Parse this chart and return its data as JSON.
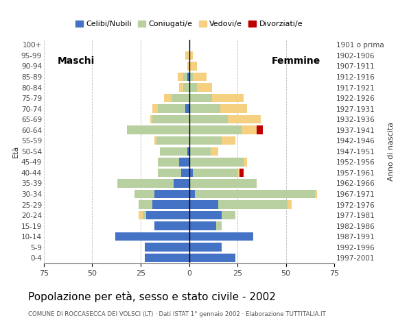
{
  "age_groups": [
    "0-4",
    "5-9",
    "10-14",
    "15-19",
    "20-24",
    "25-29",
    "30-34",
    "35-39",
    "40-44",
    "45-49",
    "50-54",
    "55-59",
    "60-64",
    "65-69",
    "70-74",
    "75-79",
    "80-84",
    "85-89",
    "90-94",
    "95-99",
    "100+"
  ],
  "birth_years": [
    "1997-2001",
    "1992-1996",
    "1987-1991",
    "1982-1986",
    "1977-1981",
    "1972-1976",
    "1967-1971",
    "1962-1966",
    "1957-1961",
    "1952-1956",
    "1947-1951",
    "1942-1946",
    "1937-1941",
    "1932-1936",
    "1927-1931",
    "1922-1926",
    "1917-1921",
    "1912-1916",
    "1907-1911",
    "1902-1906",
    "1901 o prima"
  ],
  "males": {
    "celibi": [
      23,
      23,
      38,
      18,
      22,
      19,
      18,
      8,
      4,
      5,
      1,
      0,
      0,
      0,
      2,
      0,
      0,
      1,
      0,
      0,
      0
    ],
    "coniugati": [
      0,
      0,
      0,
      0,
      2,
      7,
      10,
      29,
      12,
      11,
      14,
      17,
      32,
      19,
      14,
      9,
      3,
      2,
      0,
      0,
      0
    ],
    "vedovi": [
      0,
      0,
      0,
      0,
      2,
      0,
      0,
      0,
      0,
      0,
      0,
      1,
      0,
      1,
      3,
      4,
      2,
      3,
      1,
      2,
      0
    ],
    "divorziati": [
      0,
      0,
      0,
      0,
      0,
      0,
      0,
      0,
      0,
      0,
      0,
      0,
      0,
      0,
      0,
      0,
      0,
      0,
      0,
      0,
      0
    ]
  },
  "females": {
    "nubili": [
      24,
      17,
      33,
      14,
      17,
      15,
      3,
      0,
      2,
      0,
      0,
      0,
      0,
      0,
      0,
      0,
      0,
      0,
      0,
      0,
      0
    ],
    "coniugate": [
      0,
      0,
      0,
      3,
      7,
      36,
      62,
      35,
      23,
      28,
      11,
      17,
      27,
      20,
      16,
      12,
      4,
      2,
      0,
      0,
      0
    ],
    "vedove": [
      0,
      0,
      0,
      0,
      0,
      2,
      1,
      0,
      1,
      2,
      4,
      7,
      8,
      17,
      14,
      16,
      8,
      7,
      4,
      2,
      0
    ],
    "divorziate": [
      0,
      0,
      0,
      0,
      0,
      0,
      0,
      0,
      2,
      0,
      0,
      0,
      3,
      0,
      0,
      0,
      0,
      0,
      0,
      0,
      0
    ]
  },
  "colors": {
    "celibi": "#4472c4",
    "coniugati": "#b8cfa0",
    "vedovi": "#f5d080",
    "divorziati": "#c00000"
  },
  "xlim": 75,
  "title": "Popolazione per età, sesso e stato civile - 2002",
  "subtitle": "COMUNE DI ROCCASECCA DEI VOLSCI (LT) · Dati ISTAT 1° gennaio 2002 · Elaborazione TUTTITALIA.IT",
  "ylabel_left": "Età",
  "ylabel_right": "Anno di nascita",
  "legend_labels": [
    "Celibi/Nubili",
    "Coniugati/e",
    "Vedovi/e",
    "Divorziati/e"
  ],
  "label_maschi": "Maschi",
  "label_femmine": "Femmine",
  "xtick_labels": [
    "75",
    "50",
    "25",
    "0",
    "25",
    "50",
    "75"
  ]
}
